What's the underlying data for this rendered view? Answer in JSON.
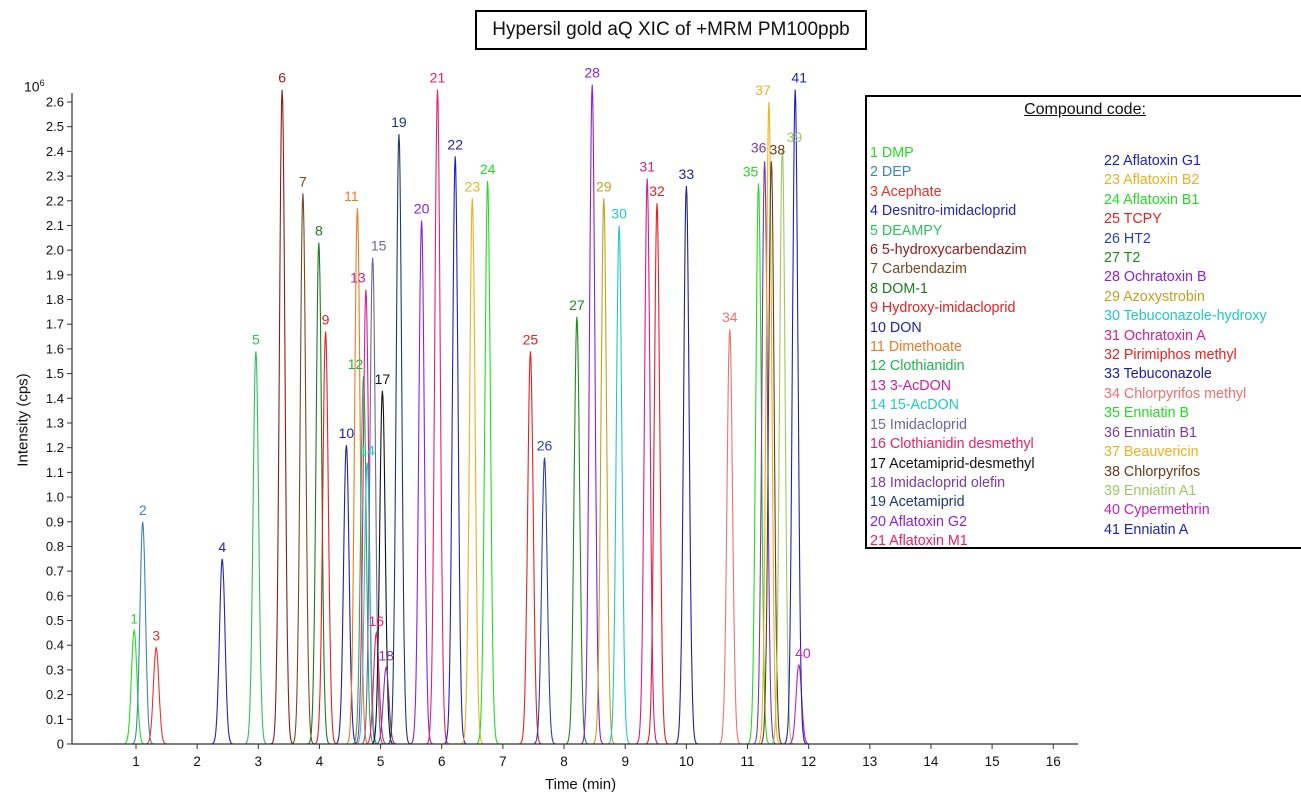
{
  "title": "Hypersil gold aQ XIC of +MRM PM100ppb",
  "y_exponent": {
    "base": "10",
    "exp": "6"
  },
  "legend": {
    "heading": "Compound code:",
    "col1": [
      {
        "text": "1 DMP",
        "color": "#22dd22"
      },
      {
        "text": "2 DEP",
        "color": "#3b86b2"
      },
      {
        "text": "3 Acephate",
        "color": "#e8322c"
      },
      {
        "text": "4 Desnitro-imidacloprid",
        "color": "#2323c0"
      },
      {
        "text": "5 DEAMPY",
        "color": "#2fc060"
      },
      {
        "text": "6 5-hydroxycarbendazim",
        "color": "#8c1c1c"
      },
      {
        "text": "7 Carbendazim",
        "color": "#7a4b1e"
      },
      {
        "text": "8 DOM-1",
        "color": "#1f7a1f"
      },
      {
        "text": "9 Hydroxy-imidacloprid",
        "color": "#e82020"
      },
      {
        "text": "10 DON",
        "color": "#1f1fb0"
      },
      {
        "text": "11 Dimethoate",
        "color": "#f07a20"
      },
      {
        "text": "12 Clothianidin",
        "color": "#22b050"
      },
      {
        "text": "13 3-AcDON",
        "color": "#d41e9a"
      },
      {
        "text": "14 15-AcDON",
        "color": "#22c8c8"
      },
      {
        "text": "15 Imidacloprid",
        "color": "#6a6a9a"
      },
      {
        "text": "16 Clothianidin desmethyl",
        "color": "#e8206a"
      },
      {
        "text": "17 Acetamiprid-desmethyl",
        "color": "#111111"
      },
      {
        "text": "18 Imidacloprid olefin",
        "color": "#7a3aa8"
      },
      {
        "text": "19 Acetamiprid",
        "color": "#1f3a6a"
      },
      {
        "text": "20 Aflatoxin G2",
        "color": "#8a20e0"
      },
      {
        "text": "21 Aflatoxin M1",
        "color": "#e8206a"
      }
    ],
    "col2": [
      {
        "text": "22 Aflatoxin G1",
        "color": "#1f20c0"
      },
      {
        "text": "23 Aflatoxin B2",
        "color": "#f0b020"
      },
      {
        "text": "24 Aflatoxin B1",
        "color": "#22dd22"
      },
      {
        "text": "25 TCPY",
        "color": "#e82020"
      },
      {
        "text": "26 HT2",
        "color": "#2a40b0"
      },
      {
        "text": "27 T2",
        "color": "#1f8a20"
      },
      {
        "text": "28 Ochratoxin B",
        "color": "#8a20e0"
      },
      {
        "text": "29 Azoxystrobin",
        "color": "#c8a020"
      },
      {
        "text": "30 Tebuconazole-hydroxy",
        "color": "#22c8c8"
      },
      {
        "text": "31 Ochratoxin A",
        "color": "#d41e8a"
      },
      {
        "text": "32 Pirimiphos methyl",
        "color": "#e82020"
      },
      {
        "text": "33 Tebuconazole",
        "color": "#1f20a0"
      },
      {
        "text": "34 Chlorpyrifos methyl",
        "color": "#f07070"
      },
      {
        "text": "35 Enniatin B",
        "color": "#22dd22"
      },
      {
        "text": "36 Enniatin B1",
        "color": "#7a3aa8"
      },
      {
        "text": "37 Beauvericin",
        "color": "#f0b020"
      },
      {
        "text": "38 Chlorpyrifos",
        "color": "#6a3a1a"
      },
      {
        "text": "39 Enniatin A1",
        "color": "#a0c860"
      },
      {
        "text": "40 Cypermethrin",
        "color": "#c020c0"
      },
      {
        "text": "41 Enniatin A",
        "color": "#2020c0"
      }
    ]
  },
  "chart_data": {
    "type": "line",
    "title": "Hypersil gold aQ XIC of +MRM PM100ppb",
    "xlabel": "Time (min)",
    "ylabel": "Intensity (cps)",
    "y_multiplier": "10^6",
    "xlim": [
      0,
      16.2
    ],
    "ylim": [
      0,
      2.65
    ],
    "x_ticks": [
      1,
      2,
      3,
      4,
      5,
      6,
      7,
      8,
      9,
      10,
      11,
      12,
      13,
      14,
      15,
      16
    ],
    "y_ticks": [
      0,
      0.1,
      0.2,
      0.3,
      0.4,
      0.5,
      0.6,
      0.7,
      0.8,
      0.9,
      1.0,
      1.1,
      1.2,
      1.3,
      1.4,
      1.5,
      1.6,
      1.7,
      1.8,
      1.9,
      2.0,
      2.1,
      2.2,
      2.3,
      2.4,
      2.5,
      2.6
    ],
    "y_tick_labels": [
      "0",
      "0.1",
      "0.2",
      "0.3",
      "0.4",
      "0.5",
      "0.6",
      "0.7",
      "0.8",
      "0.9",
      "1.0",
      "1.1",
      "1.2",
      "1.3",
      "1.4",
      "1.5",
      "1.6",
      "1.7",
      "1.8",
      "1.9",
      "2.0",
      "2.1",
      "2.2",
      "2.3",
      "2.4",
      "2.5",
      "2.6"
    ],
    "grid": false,
    "series": [
      {
        "name": "1",
        "rt": 0.97,
        "height": 0.46,
        "color": "#22dd22"
      },
      {
        "name": "2",
        "rt": 1.11,
        "height": 0.9,
        "color": "#3b86b2"
      },
      {
        "name": "3",
        "rt": 1.33,
        "height": 0.39,
        "color": "#e8322c"
      },
      {
        "name": "4",
        "rt": 2.41,
        "height": 0.75,
        "color": "#2323c0"
      },
      {
        "name": "5",
        "rt": 2.96,
        "height": 1.59,
        "color": "#2fc060"
      },
      {
        "name": "6",
        "rt": 3.39,
        "height": 2.65,
        "color": "#8c1c1c"
      },
      {
        "name": "7",
        "rt": 3.73,
        "height": 2.23,
        "color": "#7a4b1e"
      },
      {
        "name": "8",
        "rt": 3.99,
        "height": 2.03,
        "color": "#1f7a1f"
      },
      {
        "name": "9",
        "rt": 4.1,
        "height": 1.67,
        "color": "#e82020"
      },
      {
        "name": "10",
        "rt": 4.44,
        "height": 1.21,
        "color": "#1f1fb0"
      },
      {
        "name": "11",
        "rt": 4.62,
        "height": 2.17,
        "color": "#f07a20"
      },
      {
        "name": "12",
        "rt": 4.72,
        "height": 1.49,
        "color": "#22b050"
      },
      {
        "name": "13",
        "rt": 4.76,
        "height": 1.84,
        "color": "#d41e9a"
      },
      {
        "name": "14",
        "rt": 4.78,
        "height": 1.14,
        "color": "#22c8c8"
      },
      {
        "name": "15",
        "rt": 4.87,
        "height": 1.97,
        "color": "#6a6a9a"
      },
      {
        "name": "16",
        "rt": 4.93,
        "height": 0.45,
        "color": "#e8206a"
      },
      {
        "name": "17",
        "rt": 5.03,
        "height": 1.43,
        "color": "#111111"
      },
      {
        "name": "18",
        "rt": 5.09,
        "height": 0.31,
        "color": "#7a3aa8"
      },
      {
        "name": "19",
        "rt": 5.3,
        "height": 2.47,
        "color": "#1f3a6a"
      },
      {
        "name": "20",
        "rt": 5.67,
        "height": 2.12,
        "color": "#8a20e0"
      },
      {
        "name": "21",
        "rt": 5.93,
        "height": 2.65,
        "color": "#e8206a"
      },
      {
        "name": "22",
        "rt": 6.22,
        "height": 2.38,
        "color": "#1f20c0"
      },
      {
        "name": "23",
        "rt": 6.5,
        "height": 2.21,
        "color": "#f0b020"
      },
      {
        "name": "24",
        "rt": 6.75,
        "height": 2.28,
        "color": "#22dd22"
      },
      {
        "name": "25",
        "rt": 7.45,
        "height": 1.59,
        "color": "#e82020"
      },
      {
        "name": "26",
        "rt": 7.68,
        "height": 1.16,
        "color": "#2a40b0"
      },
      {
        "name": "27",
        "rt": 8.21,
        "height": 1.73,
        "color": "#1f8a20"
      },
      {
        "name": "28",
        "rt": 8.46,
        "height": 2.67,
        "color": "#8a20e0"
      },
      {
        "name": "29",
        "rt": 8.65,
        "height": 2.21,
        "color": "#c8a020"
      },
      {
        "name": "30",
        "rt": 8.9,
        "height": 2.1,
        "color": "#22c8c8"
      },
      {
        "name": "31",
        "rt": 9.36,
        "height": 2.29,
        "color": "#d41e8a"
      },
      {
        "name": "32",
        "rt": 9.52,
        "height": 2.19,
        "color": "#e82020"
      },
      {
        "name": "33",
        "rt": 10.0,
        "height": 2.26,
        "color": "#1f20a0"
      },
      {
        "name": "34",
        "rt": 10.71,
        "height": 1.68,
        "color": "#f07070"
      },
      {
        "name": "35",
        "rt": 11.18,
        "height": 2.27,
        "color": "#22dd22"
      },
      {
        "name": "36",
        "rt": 11.28,
        "height": 2.36,
        "color": "#7a3aa8"
      },
      {
        "name": "37",
        "rt": 11.35,
        "height": 2.6,
        "color": "#f0b020"
      },
      {
        "name": "38",
        "rt": 11.39,
        "height": 2.36,
        "color": "#6a3a1a"
      },
      {
        "name": "39",
        "rt": 11.57,
        "height": 2.41,
        "color": "#a0c860"
      },
      {
        "name": "40",
        "rt": 11.84,
        "height": 0.32,
        "color": "#c020c0"
      },
      {
        "name": "41",
        "rt": 11.78,
        "height": 2.65,
        "color": "#2020c0"
      }
    ]
  }
}
